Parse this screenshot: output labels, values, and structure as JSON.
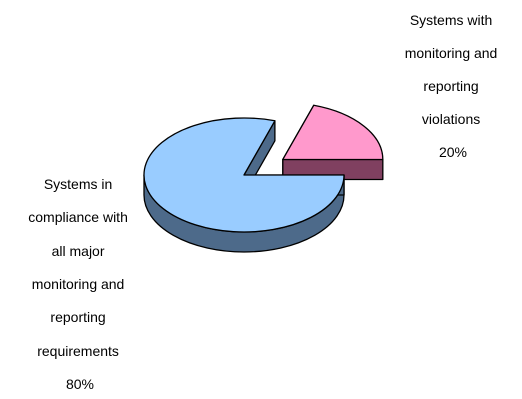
{
  "chart_data": {
    "type": "pie",
    "style": "3d-exploded",
    "slices": [
      {
        "label_lines": [
          "Systems with",
          "monitoring and",
          "reporting",
          "violations"
        ],
        "percent_label": "20%",
        "value": 20,
        "color": "#ff99cc",
        "side_color": "#804060",
        "exploded": true
      },
      {
        "label_lines": [
          "Systems in",
          "compliance with",
          "all major",
          "monitoring and",
          "reporting",
          "requirements"
        ],
        "percent_label": "80%",
        "value": 80,
        "color": "#99ccff",
        "side_color": "#4d6a8a",
        "exploded": false
      }
    ],
    "legend": "none",
    "labels": "outside"
  }
}
